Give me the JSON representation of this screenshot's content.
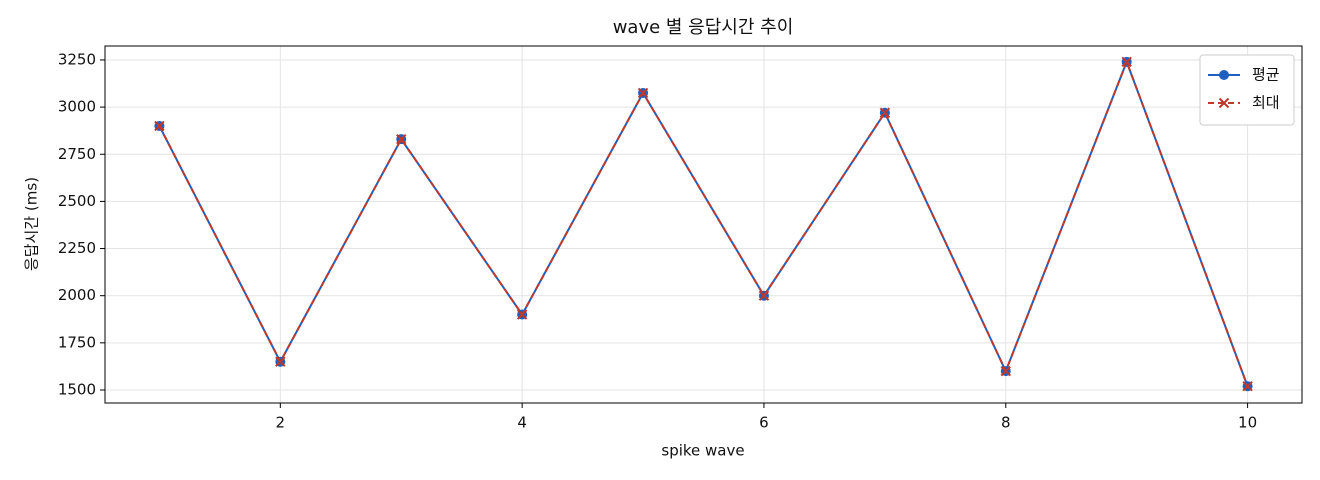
{
  "chart_data": {
    "type": "line",
    "title": "wave 별 응답시간 추이",
    "x_label": "spike wave",
    "y_label": "응답시간 (ms)",
    "x": [
      1,
      2,
      3,
      4,
      5,
      6,
      7,
      8,
      9,
      10
    ],
    "series": [
      {
        "name": "평균",
        "color": "#1f5fbf",
        "marker": "circle",
        "dash": false,
        "values": [
          2900,
          1650,
          2830,
          1900,
          3075,
          2000,
          2970,
          1600,
          3240,
          1520
        ]
      },
      {
        "name": "최대",
        "color": "#c0392b",
        "marker": "x",
        "dash": true,
        "values": [
          2900,
          1650,
          2830,
          1900,
          3075,
          2000,
          2970,
          1600,
          3240,
          1520
        ]
      }
    ],
    "xlim": [
      0.55,
      10.45
    ],
    "xticks": [
      2,
      4,
      6,
      8,
      10
    ],
    "ylim": [
      1431,
      3324
    ],
    "yticks": [
      1500,
      1750,
      2000,
      2250,
      2500,
      2750,
      3000,
      3250
    ],
    "grid": true,
    "legend": "upper right"
  }
}
